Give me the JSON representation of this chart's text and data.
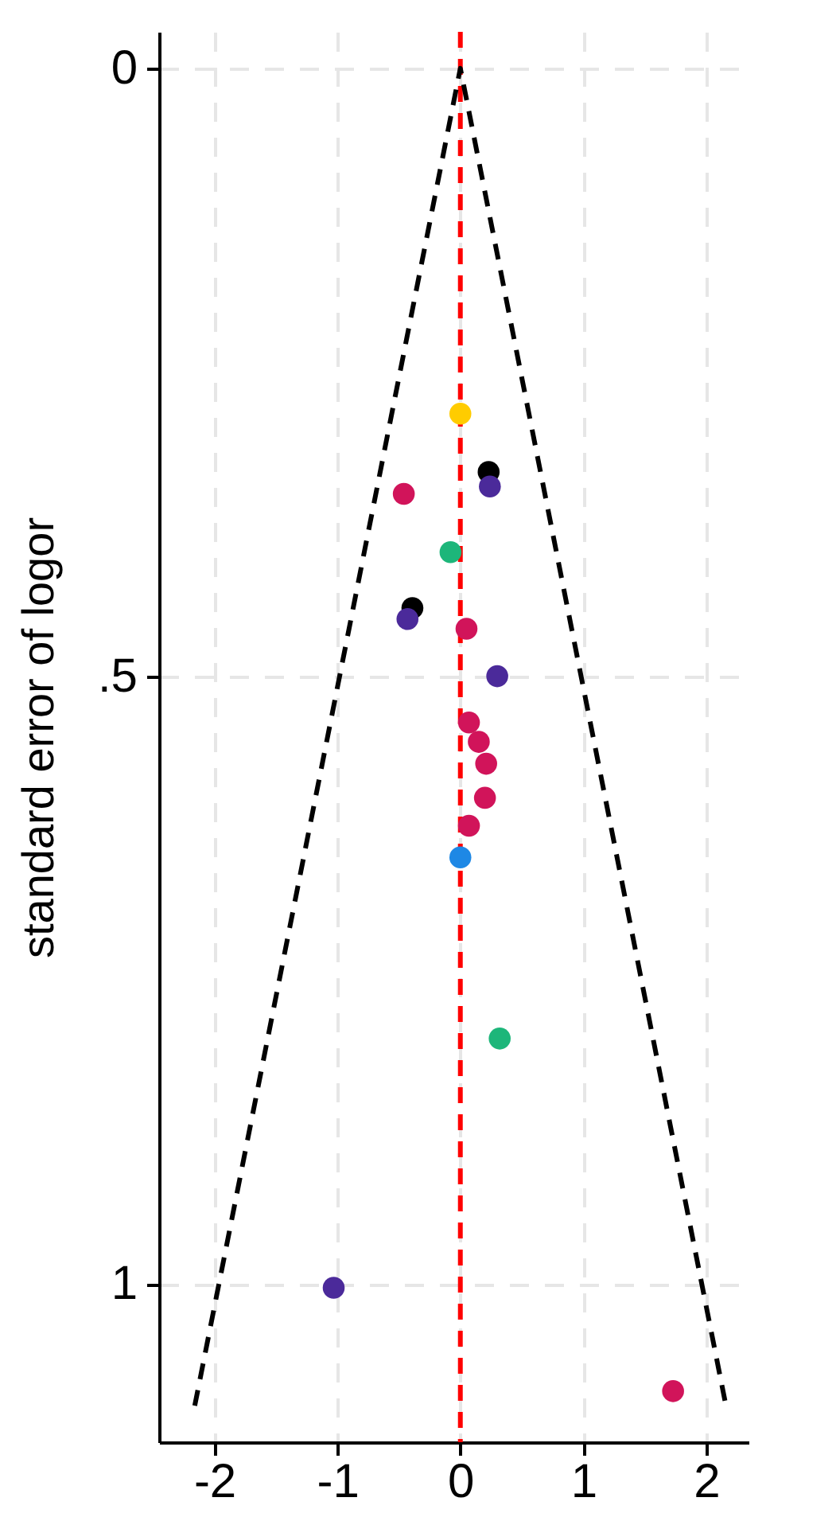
{
  "chart_data": {
    "type": "scatter",
    "ylabel": "standard error of logor",
    "xlim": [
      -2.45,
      2.35
    ],
    "ylim": [
      1.13,
      -0.03
    ],
    "xticks": [
      -2,
      -1,
      0,
      1,
      2
    ],
    "yticks": [
      0,
      {
        "value": 0.5,
        "label": ".5"
      },
      1
    ],
    "grid": true,
    "marker": "circle",
    "ref_lines": [
      {
        "axis": "x",
        "value": 0,
        "color": "#ff0000",
        "line_style": "dashed"
      }
    ],
    "series": [
      {
        "type": "line",
        "color": "#000000",
        "line_style": "dashed",
        "marker": "none",
        "x": [
          -2.16,
          0,
          2.16
        ],
        "values": [
          1.1,
          0,
          1.1
        ]
      },
      {
        "color": "#ffcc00",
        "x": [
          0
        ],
        "values": [
          0.284
        ]
      },
      {
        "color": "#000000",
        "x": [
          0.23,
          -0.39
        ],
        "values": [
          0.332,
          0.444
        ]
      },
      {
        "color": "#4b2a9a",
        "x": [
          0.24,
          -0.43,
          0.3,
          -1.03
        ],
        "values": [
          0.344,
          0.453,
          0.5,
          1.003
        ]
      },
      {
        "color": "#d1145a",
        "x": [
          -0.46,
          0.05,
          0.07,
          0.15,
          0.21,
          0.2,
          0.07,
          1.73
        ],
        "values": [
          0.35,
          0.461,
          0.538,
          0.554,
          0.572,
          0.6,
          0.623,
          1.088
        ]
      },
      {
        "color": "#1db67a",
        "x": [
          -0.08,
          0.32
        ],
        "values": [
          0.398,
          0.798
        ]
      },
      {
        "color": "#1e88e5",
        "x": [
          0
        ],
        "values": [
          0.649
        ]
      }
    ]
  }
}
